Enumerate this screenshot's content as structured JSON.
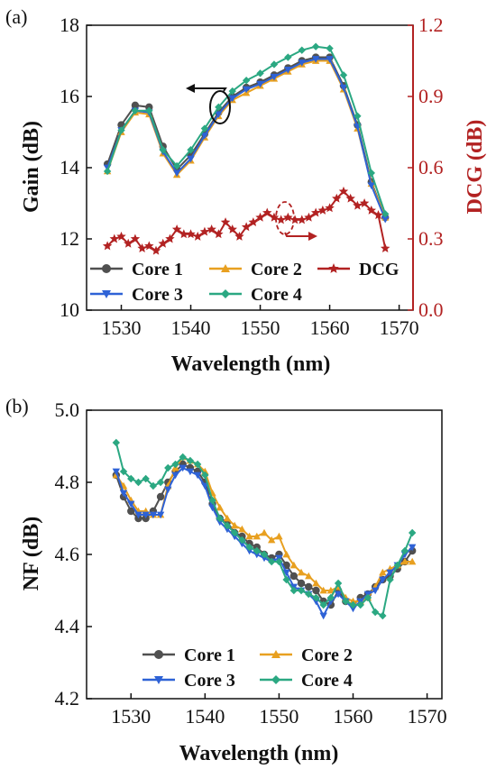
{
  "chart_data": [
    {
      "type": "line",
      "panel_label": "(a)",
      "xlabel": "Wavelength (nm)",
      "ylabel": "Gain (dB)",
      "y2label": "DCG (dB)",
      "xlim": [
        1525,
        1572
      ],
      "ylim": [
        10,
        18
      ],
      "y2lim": [
        0.0,
        1.2
      ],
      "xticks": [
        1530,
        1540,
        1550,
        1560,
        1570
      ],
      "yticks": [
        10,
        12,
        14,
        16,
        18
      ],
      "y2ticks": [
        "0.0",
        "0.3",
        "0.6",
        "0.9",
        "1.2"
      ],
      "legend_position": "bottom-left",
      "series": [
        {
          "name": "Core 1",
          "color": "#505050",
          "marker": "circle",
          "axis": "left",
          "x": [
            1528,
            1530,
            1532,
            1534,
            1536,
            1538,
            1540,
            1542,
            1544,
            1546,
            1548,
            1550,
            1552,
            1554,
            1556,
            1558,
            1560,
            1562,
            1564,
            1566,
            1568
          ],
          "y": [
            14.1,
            15.2,
            15.75,
            15.7,
            14.6,
            13.95,
            14.35,
            14.95,
            15.55,
            16.0,
            16.25,
            16.4,
            16.6,
            16.8,
            17.0,
            17.1,
            17.1,
            16.3,
            15.2,
            13.6,
            12.6
          ]
        },
        {
          "name": "Core 2",
          "color": "#E8A020",
          "marker": "triangle-up",
          "axis": "left",
          "x": [
            1528,
            1530,
            1532,
            1534,
            1536,
            1538,
            1540,
            1542,
            1544,
            1546,
            1548,
            1550,
            1552,
            1554,
            1556,
            1558,
            1560,
            1562,
            1564,
            1566,
            1568
          ],
          "y": [
            13.9,
            15.0,
            15.55,
            15.5,
            14.4,
            13.8,
            14.2,
            14.85,
            15.45,
            15.9,
            16.1,
            16.3,
            16.5,
            16.7,
            16.9,
            17.0,
            17.0,
            16.2,
            15.1,
            13.55,
            12.6
          ]
        },
        {
          "name": "Core 3",
          "color": "#2E62D6",
          "marker": "triangle-down",
          "axis": "left",
          "x": [
            1528,
            1530,
            1532,
            1534,
            1536,
            1538,
            1540,
            1542,
            1544,
            1546,
            1548,
            1550,
            1552,
            1554,
            1556,
            1558,
            1560,
            1562,
            1564,
            1566,
            1568
          ],
          "y": [
            14.0,
            15.05,
            15.6,
            15.55,
            14.45,
            13.85,
            14.25,
            14.9,
            15.5,
            15.95,
            16.2,
            16.35,
            16.55,
            16.75,
            16.95,
            17.05,
            17.05,
            16.25,
            15.15,
            13.5,
            12.55
          ]
        },
        {
          "name": "Core 4",
          "color": "#2BA882",
          "marker": "diamond",
          "axis": "left",
          "x": [
            1528,
            1530,
            1532,
            1534,
            1536,
            1538,
            1540,
            1542,
            1544,
            1546,
            1548,
            1550,
            1552,
            1554,
            1556,
            1558,
            1560,
            1562,
            1564,
            1566,
            1568
          ],
          "y": [
            13.9,
            15.05,
            15.6,
            15.6,
            14.5,
            14.05,
            14.5,
            15.1,
            15.7,
            16.15,
            16.45,
            16.65,
            16.9,
            17.1,
            17.3,
            17.4,
            17.35,
            16.6,
            15.45,
            13.85,
            12.7
          ]
        },
        {
          "name": "DCG",
          "color": "#B22222",
          "marker": "star",
          "axis": "right",
          "x": [
            1528,
            1529,
            1530,
            1531,
            1532,
            1533,
            1534,
            1535,
            1536,
            1537,
            1538,
            1539,
            1540,
            1541,
            1542,
            1543,
            1544,
            1545,
            1546,
            1547,
            1548,
            1549,
            1550,
            1551,
            1552,
            1553,
            1554,
            1555,
            1556,
            1557,
            1558,
            1559,
            1560,
            1561,
            1562,
            1563,
            1564,
            1565,
            1566,
            1567,
            1568
          ],
          "y": [
            0.27,
            0.3,
            0.31,
            0.28,
            0.3,
            0.26,
            0.27,
            0.25,
            0.28,
            0.3,
            0.34,
            0.32,
            0.32,
            0.31,
            0.33,
            0.34,
            0.32,
            0.37,
            0.34,
            0.31,
            0.35,
            0.37,
            0.39,
            0.41,
            0.39,
            0.38,
            0.39,
            0.38,
            0.38,
            0.39,
            0.41,
            0.42,
            0.43,
            0.47,
            0.5,
            0.47,
            0.44,
            0.45,
            0.42,
            0.4,
            0.26
          ]
        }
      ]
    },
    {
      "type": "line",
      "panel_label": "(b)",
      "xlabel": "Wavelength (nm)",
      "ylabel": "NF (dB)",
      "xlim": [
        1524,
        1572
      ],
      "ylim": [
        4.2,
        5.0
      ],
      "xticks": [
        1530,
        1540,
        1550,
        1560,
        1570
      ],
      "yticks": [
        "4.2",
        "4.4",
        "4.6",
        "4.8",
        "5.0"
      ],
      "legend_position": "bottom-center",
      "series": [
        {
          "name": "Core 1",
          "color": "#505050",
          "marker": "circle",
          "x": [
            1528,
            1529,
            1530,
            1531,
            1532,
            1533,
            1534,
            1535,
            1536,
            1537,
            1538,
            1539,
            1540,
            1541,
            1542,
            1543,
            1544,
            1545,
            1546,
            1547,
            1548,
            1549,
            1550,
            1551,
            1552,
            1553,
            1554,
            1555,
            1556,
            1557,
            1558,
            1559,
            1560,
            1561,
            1562,
            1563,
            1564,
            1565,
            1566,
            1567,
            1568
          ],
          "y": [
            4.82,
            4.76,
            4.72,
            4.7,
            4.7,
            4.72,
            4.76,
            4.8,
            4.83,
            4.85,
            4.84,
            4.83,
            4.8,
            4.74,
            4.7,
            4.69,
            4.66,
            4.65,
            4.63,
            4.62,
            4.6,
            4.59,
            4.6,
            4.57,
            4.54,
            4.52,
            4.51,
            4.5,
            4.47,
            4.46,
            4.5,
            4.47,
            4.46,
            4.48,
            4.49,
            4.51,
            4.53,
            4.54,
            4.56,
            4.58,
            4.61
          ]
        },
        {
          "name": "Core 2",
          "color": "#E8A020",
          "marker": "triangle-up",
          "x": [
            1528,
            1529,
            1530,
            1531,
            1532,
            1533,
            1534,
            1535,
            1536,
            1537,
            1538,
            1539,
            1540,
            1541,
            1542,
            1543,
            1544,
            1545,
            1546,
            1547,
            1548,
            1549,
            1550,
            1551,
            1552,
            1553,
            1554,
            1555,
            1556,
            1557,
            1558,
            1559,
            1560,
            1561,
            1562,
            1563,
            1564,
            1565,
            1566,
            1567,
            1568
          ],
          "y": [
            4.82,
            4.79,
            4.75,
            4.72,
            4.72,
            4.71,
            4.71,
            4.79,
            4.84,
            4.87,
            4.86,
            4.85,
            4.83,
            4.77,
            4.73,
            4.7,
            4.68,
            4.67,
            4.65,
            4.65,
            4.66,
            4.64,
            4.65,
            4.6,
            4.57,
            4.55,
            4.54,
            4.52,
            4.5,
            4.5,
            4.51,
            4.48,
            4.47,
            4.47,
            4.48,
            4.51,
            4.55,
            4.56,
            4.57,
            4.58,
            4.58
          ]
        },
        {
          "name": "Core 3",
          "color": "#2E62D6",
          "marker": "triangle-down",
          "x": [
            1528,
            1529,
            1530,
            1531,
            1532,
            1533,
            1534,
            1535,
            1536,
            1537,
            1538,
            1539,
            1540,
            1541,
            1542,
            1543,
            1544,
            1545,
            1546,
            1547,
            1548,
            1549,
            1550,
            1551,
            1552,
            1553,
            1554,
            1555,
            1556,
            1557,
            1558,
            1559,
            1560,
            1561,
            1562,
            1563,
            1564,
            1565,
            1566,
            1567,
            1568
          ],
          "y": [
            4.83,
            4.77,
            4.74,
            4.71,
            4.71,
            4.71,
            4.71,
            4.78,
            4.82,
            4.84,
            4.83,
            4.82,
            4.79,
            4.73,
            4.69,
            4.67,
            4.65,
            4.63,
            4.61,
            4.6,
            4.59,
            4.58,
            4.59,
            4.55,
            4.51,
            4.5,
            4.49,
            4.47,
            4.43,
            4.47,
            4.49,
            4.47,
            4.45,
            4.47,
            4.49,
            4.5,
            4.53,
            4.55,
            4.57,
            4.6,
            4.62
          ]
        },
        {
          "name": "Core 4",
          "color": "#2BA882",
          "marker": "diamond",
          "x": [
            1528,
            1529,
            1530,
            1531,
            1532,
            1533,
            1534,
            1535,
            1536,
            1537,
            1538,
            1539,
            1540,
            1541,
            1542,
            1543,
            1544,
            1545,
            1546,
            1547,
            1548,
            1549,
            1550,
            1551,
            1552,
            1553,
            1554,
            1555,
            1556,
            1557,
            1558,
            1559,
            1560,
            1561,
            1562,
            1563,
            1564,
            1565,
            1566,
            1567,
            1568
          ],
          "y": [
            4.91,
            4.83,
            4.81,
            4.8,
            4.81,
            4.79,
            4.8,
            4.84,
            4.85,
            4.87,
            4.86,
            4.85,
            4.82,
            4.75,
            4.7,
            4.68,
            4.66,
            4.64,
            4.62,
            4.61,
            4.6,
            4.58,
            4.58,
            4.53,
            4.5,
            4.5,
            4.49,
            4.48,
            4.46,
            4.48,
            4.52,
            4.47,
            4.46,
            4.46,
            4.48,
            4.44,
            4.43,
            4.53,
            4.57,
            4.61,
            4.66
          ]
        }
      ]
    }
  ]
}
